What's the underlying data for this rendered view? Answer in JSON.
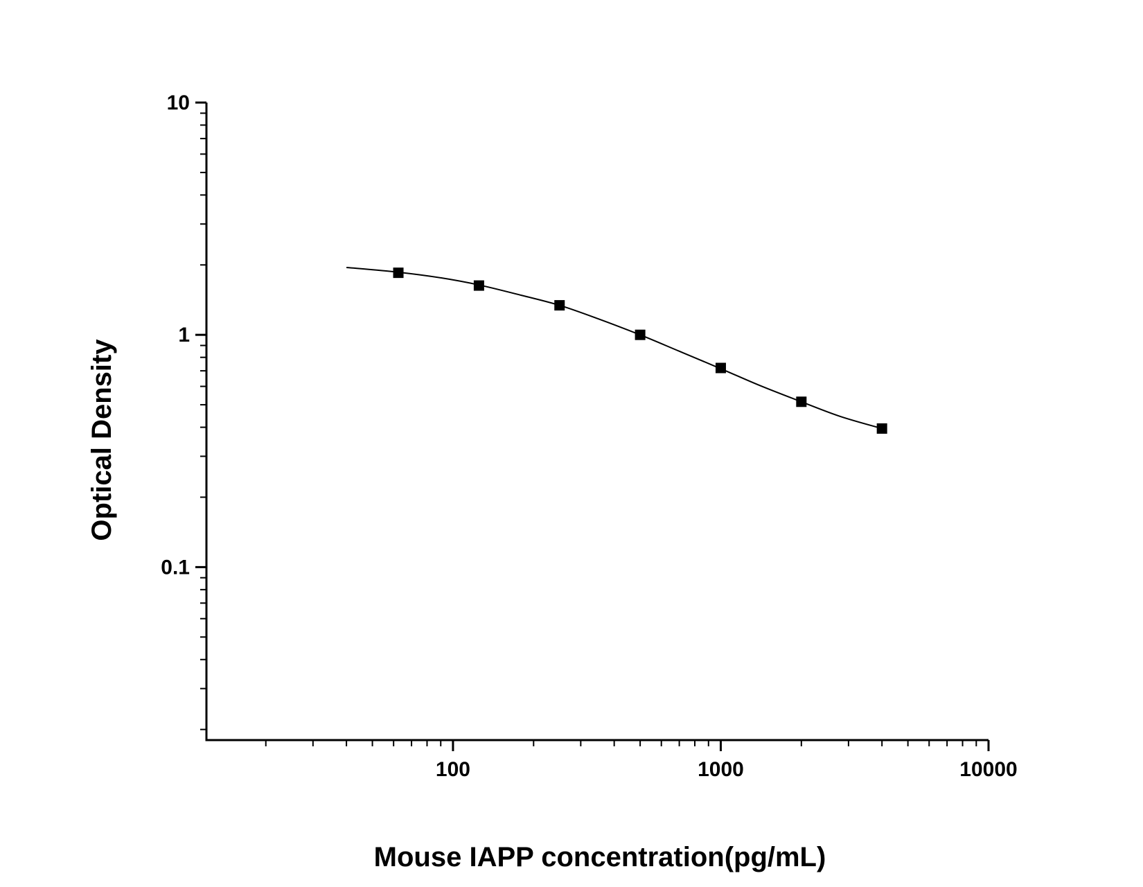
{
  "chart_data": {
    "type": "scatter",
    "title": "",
    "xlabel": "Mouse IAPP concentration(pg/mL)",
    "ylabel": "Optical Density",
    "x_scale": "log",
    "y_scale": "log",
    "xlim": [
      12,
      10000
    ],
    "ylim": [
      0.018,
      10
    ],
    "x_ticks": [
      {
        "value": 100,
        "label": "100"
      },
      {
        "value": 1000,
        "label": "1000"
      },
      {
        "value": 10000,
        "label": "10000"
      }
    ],
    "y_ticks": [
      {
        "value": 10,
        "label": "10"
      },
      {
        "value": 1,
        "label": "1"
      },
      {
        "value": 0.1,
        "label": "0.1"
      }
    ],
    "grid": false,
    "legend": "none",
    "series": [
      {
        "kind": "points",
        "marker": "square",
        "color": "#000000",
        "x": [
          62.5,
          125,
          250,
          500,
          1000,
          2000,
          4000
        ],
        "y": [
          1.85,
          1.63,
          1.34,
          1.0,
          0.72,
          0.515,
          0.395
        ]
      },
      {
        "kind": "fit-curve",
        "color": "#000000",
        "x": [
          40,
          62.5,
          90,
          125,
          180,
          250,
          350,
          500,
          700,
          1000,
          1400,
          2000,
          2800,
          4000
        ],
        "y": [
          1.95,
          1.86,
          1.76,
          1.64,
          1.48,
          1.34,
          1.17,
          1.0,
          0.85,
          0.715,
          0.605,
          0.515,
          0.445,
          0.395
        ]
      }
    ]
  }
}
